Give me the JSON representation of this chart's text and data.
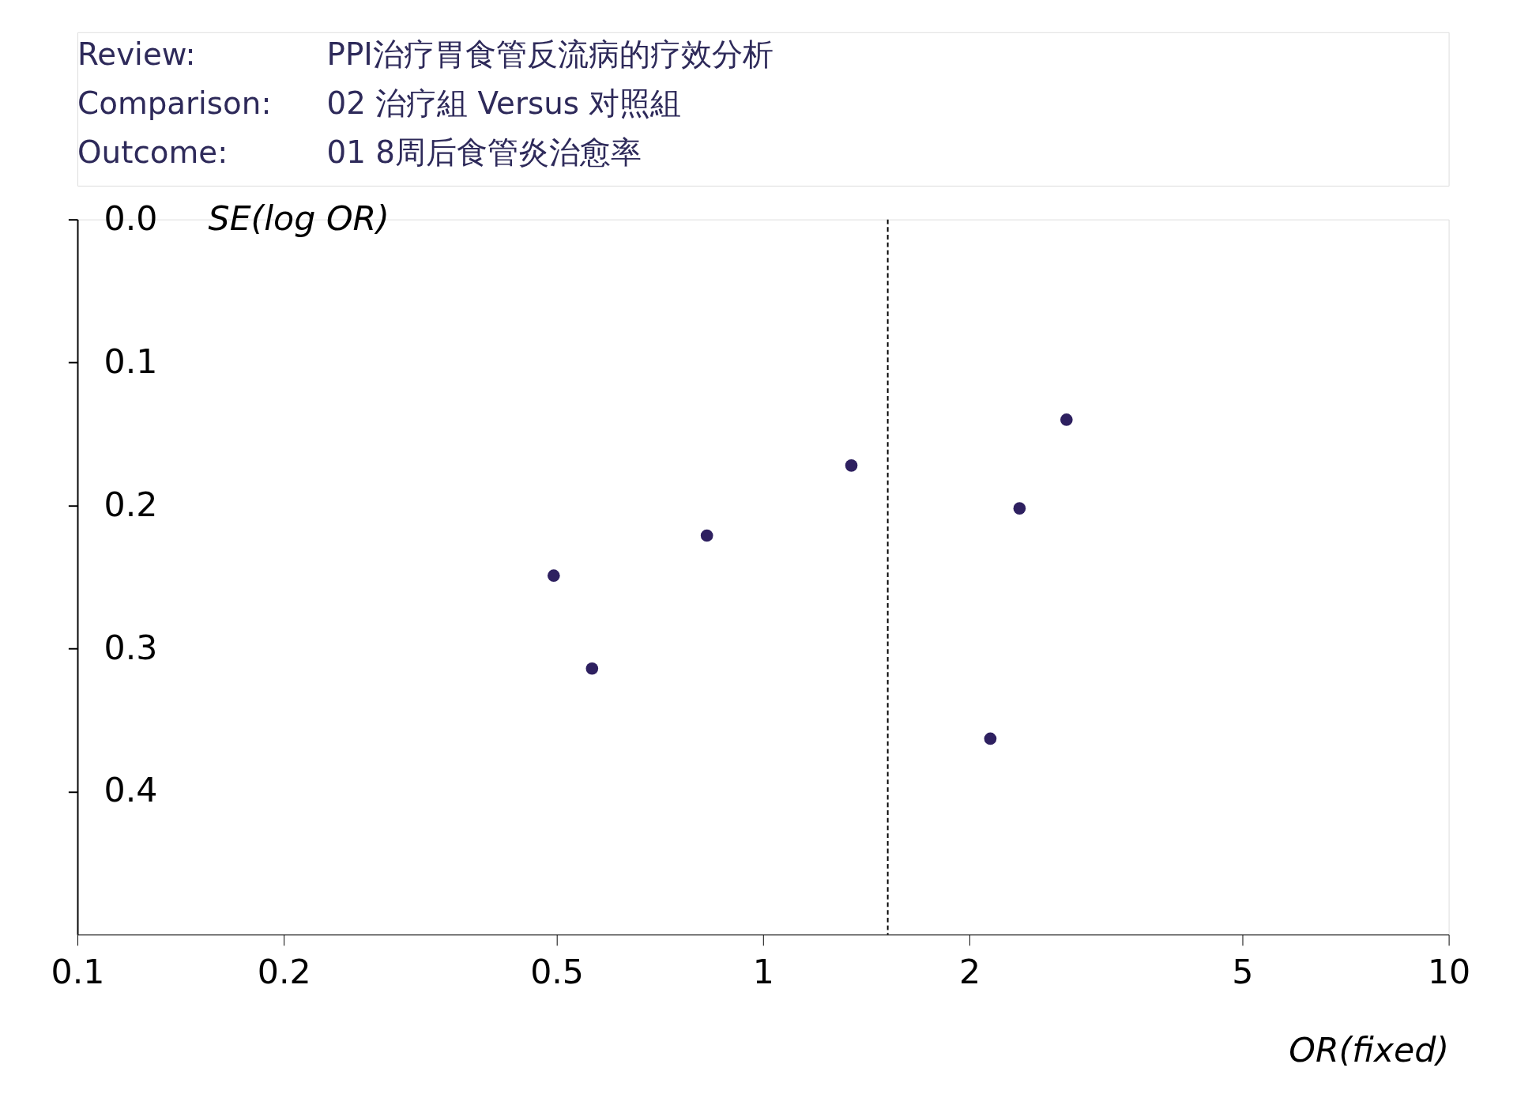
{
  "chart_data": {
    "type": "scatter",
    "annotations": [
      "Review:",
      "PPI治疗胃食管反流病的疗效分析",
      "Comparison:",
      "02 治疗組 Versus 对照組",
      "Outcome:",
      "01 8周后食管炎治愈率"
    ],
    "x": [
      0.495,
      0.563,
      0.828,
      1.345,
      2.77,
      2.366,
      2.145
    ],
    "series": [
      {
        "color": "#2e2060",
        "values": [
          0.249,
          0.314,
          0.221,
          0.172,
          0.14,
          0.202,
          0.363
        ]
      }
    ],
    "xlabel": "OR(fixed)",
    "ylabel": "SE(log OR)",
    "log": "x",
    "xlim": [
      0.1,
      10
    ],
    "xticks": [
      0.1,
      0.2,
      0.5,
      1,
      2,
      5,
      10
    ],
    "ylim": [
      0.5,
      0.0
    ],
    "yticks": [
      {
        "value": 0.0,
        "label": "0.0"
      },
      0.1,
      0.2,
      0.3,
      0.4
    ],
    "ref_lines": [
      {
        "axis": "x",
        "value": 1.52,
        "line_style": "dashed",
        "color": "#000000"
      }
    ],
    "marker": "circle",
    "grid": false
  }
}
